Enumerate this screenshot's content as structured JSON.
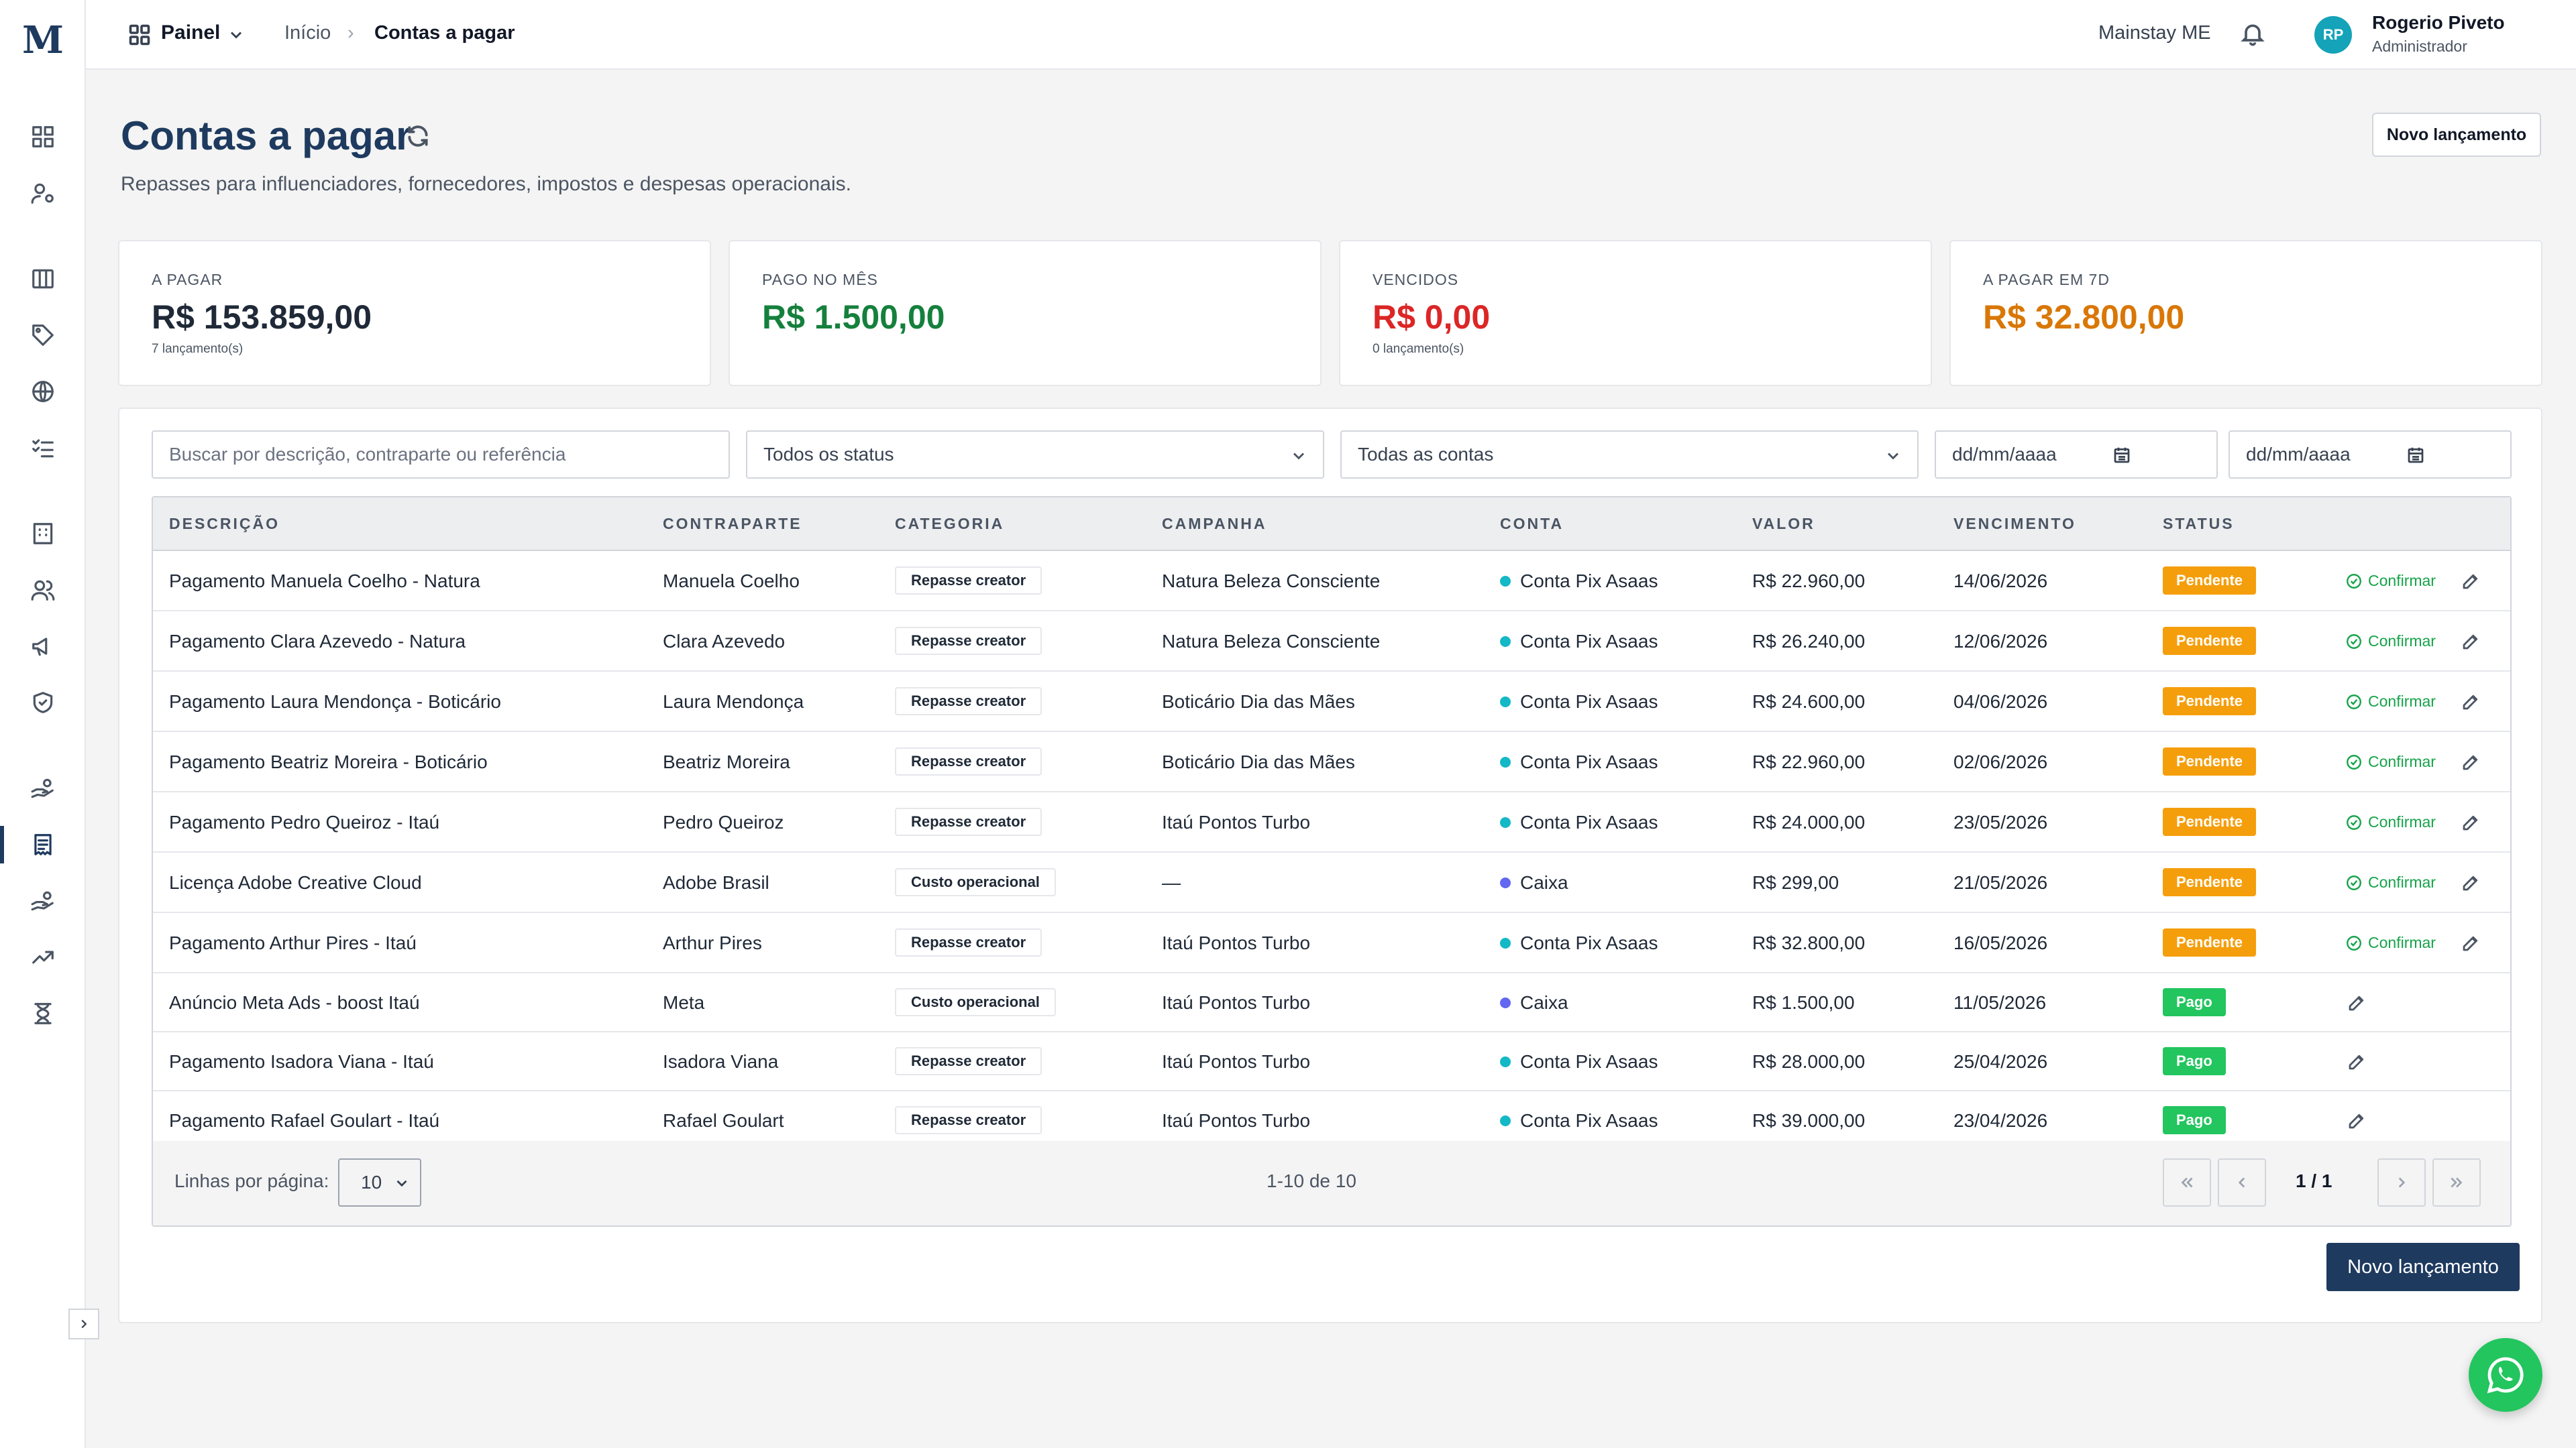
{
  "app": {
    "logo": "M"
  },
  "topbar": {
    "painel_label": "Painel",
    "breadcrumb": [
      "Início",
      "Contas a pagar"
    ],
    "breadcrumb_sep": "›",
    "company": "Mainstay ME",
    "user": {
      "initials": "RP",
      "name": "Rogerio Piveto",
      "role": "Administrador"
    }
  },
  "sidebar": {
    "icons": [
      "dashboard-icon",
      "user-cog-icon",
      "columns-icon",
      "tag-icon",
      "globe-icon",
      "checklist-icon",
      "building-icon",
      "users-icon",
      "megaphone-icon",
      "shield-icon",
      "hand-coins-icon",
      "receipt-icon",
      "hand-coins-out-icon",
      "trending-up-icon",
      "hourglass-icon"
    ],
    "active": "receipt-icon"
  },
  "page": {
    "title": "Contas a pagar",
    "subtitle": "Repasses para influenciadores, fornecedores, impostos e despesas operacionais.",
    "top_button": "Novo lançamento",
    "bottom_button": "Novo lançamento"
  },
  "kpis": [
    {
      "label": "A PAGAR",
      "value": "R$ 153.859,00",
      "sub": "7 lançamento(s)",
      "color": "#1f2937"
    },
    {
      "label": "PAGO NO MÊS",
      "value": "R$ 1.500,00",
      "sub": "",
      "color": "#15803d"
    },
    {
      "label": "VENCIDOS",
      "value": "R$ 0,00",
      "sub": "0 lançamento(s)",
      "color": "#dc2626"
    },
    {
      "label": "A PAGAR EM 7D",
      "value": "R$ 32.800,00",
      "sub": "",
      "color": "#d97706"
    }
  ],
  "filters": {
    "search_placeholder": "Buscar por descrição, contraparte ou referência",
    "status_value": "Todos os status",
    "account_value": "Todas as contas",
    "date_from_placeholder": "dd/mm/aaaa",
    "date_to_placeholder": "dd/mm/aaaa"
  },
  "table": {
    "headers": [
      "DESCRIÇÃO",
      "CONTRAPARTE",
      "CATEGORIA",
      "CAMPANHA",
      "CONTA",
      "VALOR",
      "VENCIMENTO",
      "STATUS"
    ],
    "confirm_label": "Confirmar",
    "rows": [
      {
        "descricao": "Pagamento Manuela Coelho - Natura",
        "contraparte": "Manuela Coelho",
        "categoria": "Repasse creator",
        "campanha": "Natura Beleza Consciente",
        "conta": "Conta Pix Asaas",
        "conta_color": "#14b8c6",
        "valor": "R$ 22.960,00",
        "vencimento": "14/06/2026",
        "status": "Pendente"
      },
      {
        "descricao": "Pagamento Clara Azevedo - Natura",
        "contraparte": "Clara Azevedo",
        "categoria": "Repasse creator",
        "campanha": "Natura Beleza Consciente",
        "conta": "Conta Pix Asaas",
        "conta_color": "#14b8c6",
        "valor": "R$ 26.240,00",
        "vencimento": "12/06/2026",
        "status": "Pendente"
      },
      {
        "descricao": "Pagamento Laura Mendonça - Boticário",
        "contraparte": "Laura Mendonça",
        "categoria": "Repasse creator",
        "campanha": "Boticário Dia das Mães",
        "conta": "Conta Pix Asaas",
        "conta_color": "#14b8c6",
        "valor": "R$ 24.600,00",
        "vencimento": "04/06/2026",
        "status": "Pendente"
      },
      {
        "descricao": "Pagamento Beatriz Moreira - Boticário",
        "contraparte": "Beatriz Moreira",
        "categoria": "Repasse creator",
        "campanha": "Boticário Dia das Mães",
        "conta": "Conta Pix Asaas",
        "conta_color": "#14b8c6",
        "valor": "R$ 22.960,00",
        "vencimento": "02/06/2026",
        "status": "Pendente"
      },
      {
        "descricao": "Pagamento Pedro Queiroz - Itaú",
        "contraparte": "Pedro Queiroz",
        "categoria": "Repasse creator",
        "campanha": "Itaú Pontos Turbo",
        "conta": "Conta Pix Asaas",
        "conta_color": "#14b8c6",
        "valor": "R$ 24.000,00",
        "vencimento": "23/05/2026",
        "status": "Pendente"
      },
      {
        "descricao": "Licença Adobe Creative Cloud",
        "contraparte": "Adobe Brasil",
        "categoria": "Custo operacional",
        "campanha": "—",
        "conta": "Caixa",
        "conta_color": "#6366f1",
        "valor": "R$ 299,00",
        "vencimento": "21/05/2026",
        "status": "Pendente"
      },
      {
        "descricao": "Pagamento Arthur Pires - Itaú",
        "contraparte": "Arthur Pires",
        "categoria": "Repasse creator",
        "campanha": "Itaú Pontos Turbo",
        "conta": "Conta Pix Asaas",
        "conta_color": "#14b8c6",
        "valor": "R$ 32.800,00",
        "vencimento": "16/05/2026",
        "status": "Pendente"
      },
      {
        "descricao": "Anúncio Meta Ads - boost Itaú",
        "contraparte": "Meta",
        "categoria": "Custo operacional",
        "campanha": "Itaú Pontos Turbo",
        "conta": "Caixa",
        "conta_color": "#6366f1",
        "valor": "R$ 1.500,00",
        "vencimento": "11/05/2026",
        "status": "Pago"
      },
      {
        "descricao": "Pagamento Isadora Viana - Itaú",
        "contraparte": "Isadora Viana",
        "categoria": "Repasse creator",
        "campanha": "Itaú Pontos Turbo",
        "conta": "Conta Pix Asaas",
        "conta_color": "#14b8c6",
        "valor": "R$ 28.000,00",
        "vencimento": "25/04/2026",
        "status": "Pago"
      },
      {
        "descricao": "Pagamento Rafael Goulart - Itaú",
        "contraparte": "Rafael Goulart",
        "categoria": "Repasse creator",
        "campanha": "Itaú Pontos Turbo",
        "conta": "Conta Pix Asaas",
        "conta_color": "#14b8c6",
        "valor": "R$ 39.000,00",
        "vencimento": "23/04/2026",
        "status": "Pago"
      }
    ]
  },
  "status_colors": {
    "Pendente": "#f59e0b",
    "Pago": "#22c55e"
  },
  "pagination": {
    "rows_per_page_label": "Linhas por página:",
    "rows_per_page": "10",
    "range": "1-10 de 10",
    "page": "1 / 1"
  }
}
